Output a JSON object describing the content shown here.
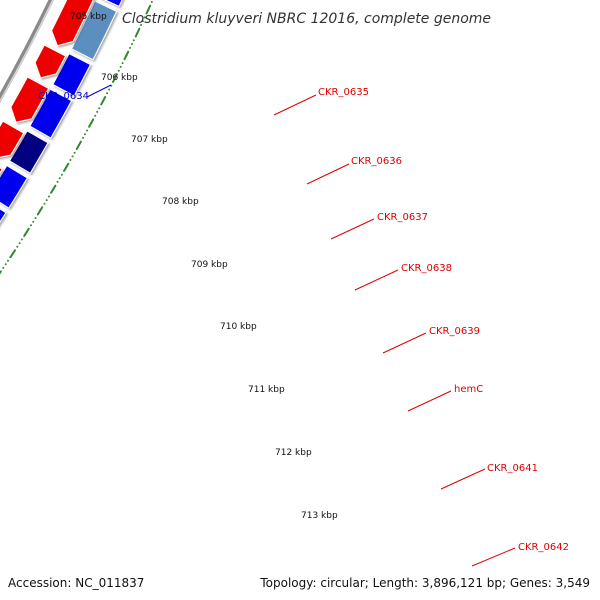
{
  "title": "Clostridium kluyveri NBRC 12016, complete genome",
  "footer": {
    "accession": "Accession: NC_011837",
    "summary": "Topology: circular; Length: 3,896,121 bp; Genes: 3,549"
  },
  "colors": {
    "background": "#ffffff",
    "backbone": "#8a8a8a",
    "tick": "#2e8b2e",
    "plus_strand": "#0000ee",
    "minus_strand": "#ee0000",
    "label_red": "#dd0000",
    "label_blue": "#0000cc"
  },
  "ticks": [
    {
      "label": "705 kbp"
    },
    {
      "label": "706 kbp"
    },
    {
      "label": "707 kbp"
    },
    {
      "label": "708 kbp"
    },
    {
      "label": "709 kbp"
    },
    {
      "label": "710 kbp"
    },
    {
      "label": "711 kbp"
    },
    {
      "label": "712 kbp"
    },
    {
      "label": "713 kbp"
    }
  ],
  "gene_labels": [
    {
      "text": "CKR_0634",
      "color": "#0000cc"
    },
    {
      "text": "CKR_0635",
      "color": "#dd0000"
    },
    {
      "text": "CKR_0636",
      "color": "#dd0000"
    },
    {
      "text": "CKR_0637",
      "color": "#dd0000"
    },
    {
      "text": "CKR_0638",
      "color": "#dd0000"
    },
    {
      "text": "CKR_0639",
      "color": "#dd0000"
    },
    {
      "text": "hemC",
      "color": "#dd0000"
    },
    {
      "text": "CKR_0641",
      "color": "#dd0000"
    },
    {
      "text": "CKR_0642",
      "color": "#dd0000"
    }
  ],
  "genes": [
    {
      "name": "CKR_0634-track",
      "strand": "plus",
      "color": "#c8c48a"
    },
    {
      "name": "CKR_0634",
      "strand": "plus",
      "color": "#0000ee"
    },
    {
      "name": "CKR_0635",
      "strand": "plus",
      "color": "#0000ee"
    },
    {
      "name": "CKR_0636",
      "strand": "plus",
      "color": "#5b8fc0"
    },
    {
      "name": "CKR_0637",
      "strand": "plus",
      "color": "#0000ee"
    },
    {
      "name": "CKR_0638",
      "strand": "plus",
      "color": "#0000ee"
    },
    {
      "name": "CKR_0639",
      "strand": "plus",
      "color": "#000080"
    },
    {
      "name": "hemC",
      "strand": "plus",
      "color": "#0000ee"
    },
    {
      "name": "CKR_0641",
      "strand": "plus",
      "color": "#0000ee"
    },
    {
      "name": "CKR_0642",
      "strand": "plus",
      "color": "#0000ee"
    },
    {
      "name": "cds-minus-1",
      "strand": "minus",
      "color": "#ee0000"
    },
    {
      "name": "cds-minus-2",
      "strand": "minus",
      "color": "#ee0000"
    },
    {
      "name": "cds-minus-3",
      "strand": "minus",
      "color": "#ee0000"
    },
    {
      "name": "cds-minus-4",
      "strand": "minus",
      "color": "#ee0000"
    },
    {
      "name": "cds-minus-5",
      "strand": "minus",
      "color": "#ee0000"
    },
    {
      "name": "cds-minus-6",
      "strand": "minus",
      "color": "#ee0000"
    },
    {
      "name": "cds-minus-7",
      "strand": "minus",
      "color": "#ee0000"
    },
    {
      "name": "cds-minus-8",
      "strand": "minus",
      "color": "#ee0000"
    },
    {
      "name": "cds-minus-9",
      "strand": "minus",
      "color": "#ee0000"
    }
  ]
}
